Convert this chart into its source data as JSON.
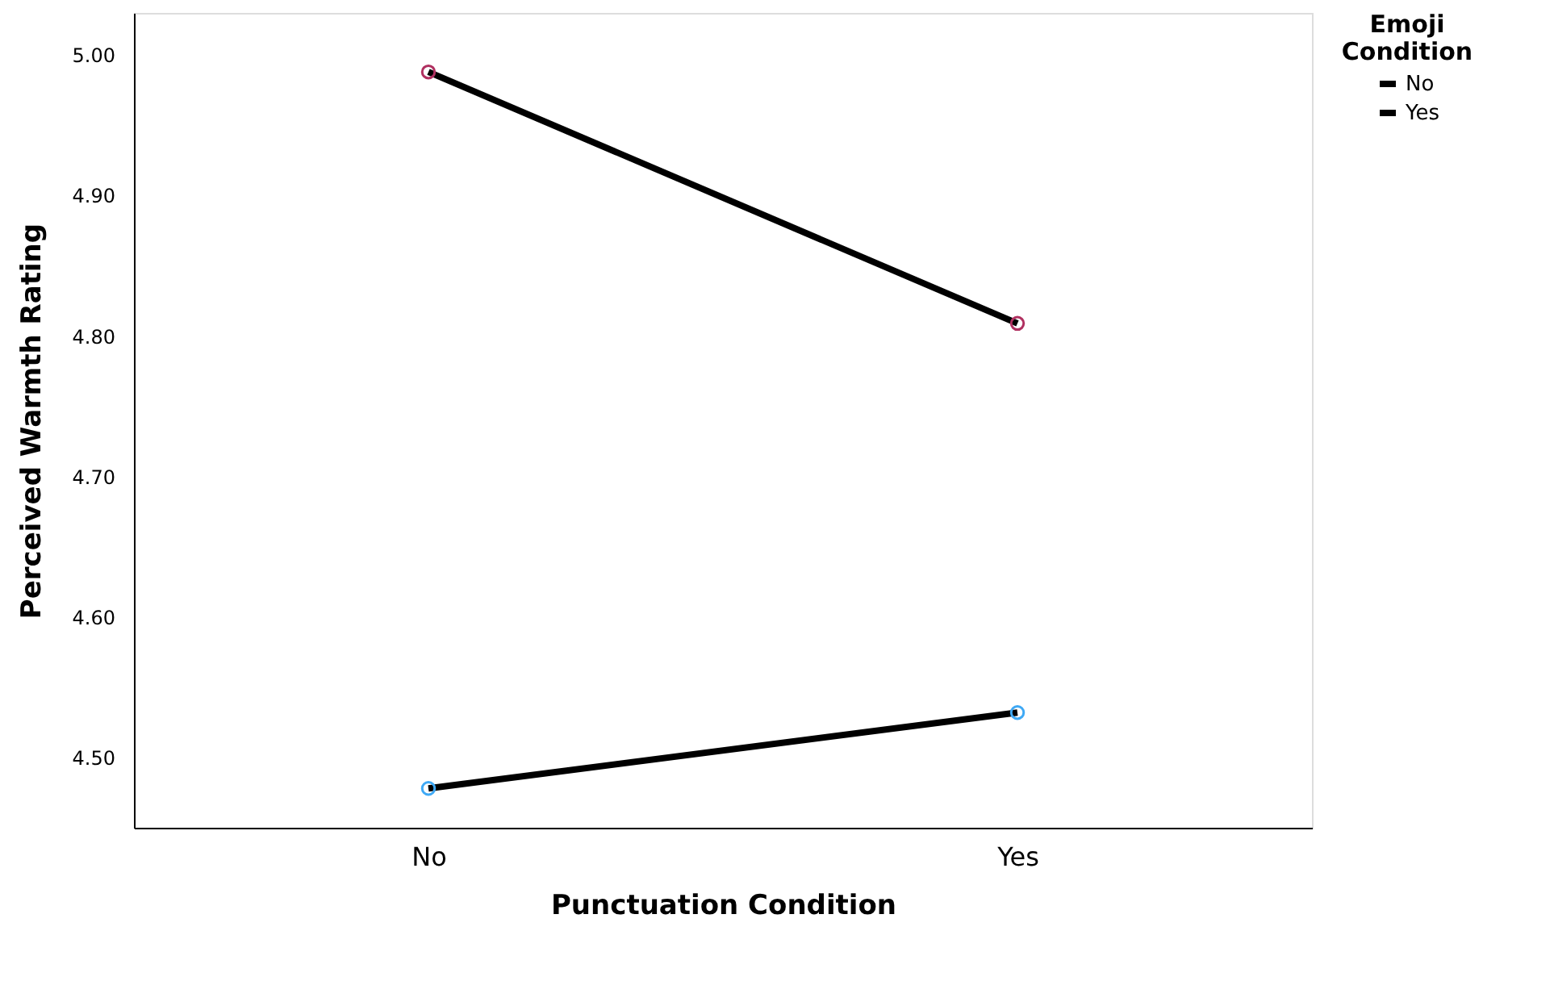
{
  "chart_data": {
    "type": "line",
    "xlabel": "Punctuation Condition",
    "ylabel": "Perceived Warmth Rating",
    "legend_title": "Emoji Condition",
    "categories": [
      "No",
      "Yes"
    ],
    "series": [
      {
        "name": "No",
        "color": "#000000",
        "colors": [
          "#3fa9f5",
          "#3fa9f5"
        ],
        "values": [
          4.478,
          4.532
        ]
      },
      {
        "name": "Yes",
        "color": "#000000",
        "colors": [
          "#b03060",
          "#b03060"
        ],
        "values": [
          4.988,
          4.809
        ]
      }
    ],
    "ylim": [
      4.45,
      5.03
    ],
    "yticks": [
      {
        "value": 4.5,
        "label": "4.50"
      },
      {
        "value": 4.6,
        "label": "4.60"
      },
      {
        "value": 4.7,
        "label": "4.70"
      },
      {
        "value": 4.8,
        "label": "4.80"
      },
      {
        "value": 4.9,
        "label": "4.90"
      },
      {
        "value": 5.0,
        "label": "5.00"
      }
    ],
    "grid": false,
    "legend": "top right",
    "marker": "circle",
    "line_style": "solid"
  }
}
